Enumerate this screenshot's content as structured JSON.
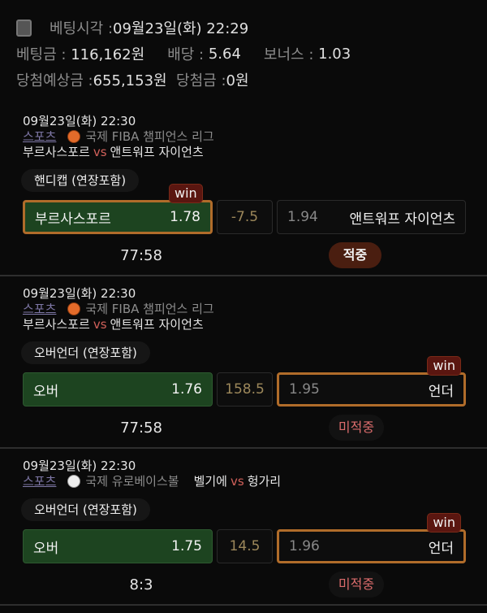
{
  "summary": {
    "bet_time_label": "베팅시각 :",
    "bet_time": "09월23일(화) 22:29",
    "stake_label": "베팅금 :",
    "stake": "116,162원",
    "odds_label": "배당 :",
    "odds": "5.64",
    "bonus_label": "보너스 :",
    "bonus": "1.03",
    "expected_label": "당첨예상금 :",
    "expected": "655,153원",
    "winnings_label": "당첨금 :",
    "winnings": "0원"
  },
  "bets": [
    {
      "datetime": "09월23일(화) 22:30",
      "sport": "스포츠",
      "sport_icon": "basketball-icon",
      "league": "국제 FIBA 챔피언스 리그",
      "home": "부르사스포르",
      "vs": "vs",
      "away": "앤트워프 자이언츠",
      "market": "핸디캡 (연장포함)",
      "home_label": "부르사스포르",
      "home_odds": "1.78",
      "line": "-7.5",
      "away_odds": "1.94",
      "away_label": "앤트워프 자이언츠",
      "win_badge": "win",
      "selected": "home",
      "score": "77:58",
      "result": "적중"
    },
    {
      "datetime": "09월23일(화) 22:30",
      "sport": "스포츠",
      "sport_icon": "basketball-icon",
      "league": "국제 FIBA 챔피언스 리그",
      "home": "부르사스포르",
      "vs": "vs",
      "away": "앤트워프 자이언츠",
      "market": "오버언더 (연장포함)",
      "home_label": "오버",
      "home_odds": "1.76",
      "line": "158.5",
      "away_odds": "1.95",
      "away_label": "언더",
      "win_badge": "win",
      "selected": "home",
      "score": "77:58",
      "result": "미적중"
    },
    {
      "datetime": "09월23일(화) 22:30",
      "sport": "스포츠",
      "sport_icon": "baseball-icon",
      "league": "국제 유로베이스볼",
      "home": "벨기에",
      "vs": "vs",
      "away": "헝가리",
      "market": "오버언더 (연장포함)",
      "home_label": "오버",
      "home_odds": "1.75",
      "line": "14.5",
      "away_odds": "1.96",
      "away_label": "언더",
      "win_badge": "win",
      "selected": "home",
      "score": "8:3",
      "result": "미적중"
    }
  ],
  "colors": {
    "selected_bg": "#1d4420",
    "win_border": "#b06c2a",
    "win_badge": "#5a1610",
    "hit": "#4a1e10",
    "miss_text": "#dc6c6c"
  }
}
